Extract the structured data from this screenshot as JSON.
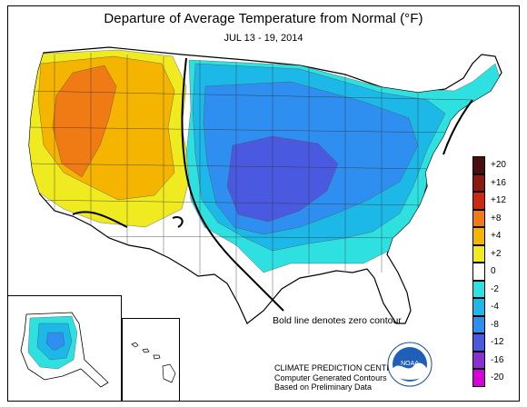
{
  "title": "Departure of Average Temperature from Normal (°F)",
  "subtitle": "JUL 13 - 19, 2014",
  "legend": {
    "levels": [
      {
        "label": "+20",
        "color": "#4a0e0e"
      },
      {
        "label": "+16",
        "color": "#8b1a10"
      },
      {
        "label": "+12",
        "color": "#cc2a10"
      },
      {
        "label": "+8",
        "color": "#f07a14"
      },
      {
        "label": "+4",
        "color": "#f5b400"
      },
      {
        "label": "+2",
        "color": "#f0ea20"
      },
      {
        "label": "0",
        "color": "#ffffff"
      },
      {
        "label": "-2",
        "color": "#2fe0e0"
      },
      {
        "label": "-4",
        "color": "#1cb8e8"
      },
      {
        "label": "-8",
        "color": "#2f8ff0"
      },
      {
        "label": "-12",
        "color": "#4a5ae0"
      },
      {
        "label": "-16",
        "color": "#8a30d0"
      },
      {
        "label": "-20",
        "color": "#d800d8"
      }
    ]
  },
  "note": "Bold line denotes zero contour",
  "credit": {
    "line1": "CLIMATE PREDICTION CENTER, NOAA",
    "line2": "Computer Generated Contours",
    "line3": "Based on Preliminary Data"
  },
  "logo_text": "NOAA",
  "colors": {
    "warm_strong": "#f07a14",
    "warm": "#f5b400",
    "warm_light": "#f0ea20",
    "cool_light": "#2fe0e0",
    "cool": "#1cb8e8",
    "cool_strong": "#2f8ff0",
    "cool_deep": "#4a5ae0"
  }
}
